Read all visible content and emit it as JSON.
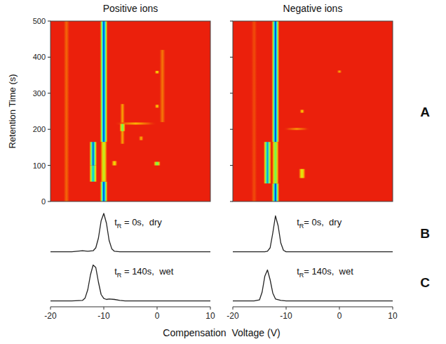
{
  "chart_data": [
    {
      "type": "heatmap",
      "title": "Positive ions",
      "ylabel": "Retention Time (s)",
      "panel": "A",
      "xlim": [
        -20,
        10
      ],
      "ylim": [
        0,
        500
      ],
      "yticks": [
        0,
        100,
        200,
        300,
        400,
        500
      ],
      "tick_labels": "y",
      "color_range": [
        0,
        1
      ],
      "cells": [
        {
          "cv": -17,
          "width": 1.2,
          "t": [
            0,
            500
          ],
          "intensity": 0.1
        },
        {
          "cv": -6.5,
          "width": 1,
          "t": [
            160,
            270
          ],
          "intensity": 0.18
        },
        {
          "cv": 1,
          "width": 1.2,
          "t": [
            220,
            420
          ],
          "intensity": 0.12
        },
        {
          "cv": -4,
          "width": 8,
          "t": [
            213,
            219
          ],
          "intensity": 0.2
        },
        {
          "cv": -10,
          "width": 1.6,
          "t": [
            0,
            55
          ],
          "intensity": 1
        },
        {
          "cv": -10,
          "width": 1.6,
          "t": [
            165,
            500
          ],
          "intensity": 1
        },
        {
          "cv": -10,
          "width": 1.4,
          "t": [
            55,
            165
          ],
          "intensity": 0.4
        },
        {
          "cv": -12,
          "width": 1.6,
          "t": [
            55,
            100
          ],
          "intensity": 0.8
        },
        {
          "cv": -12,
          "width": 1.6,
          "t": [
            100,
            165
          ],
          "intensity": 0.95
        },
        {
          "cv": -8,
          "width": 1.2,
          "t": [
            100,
            112
          ],
          "intensity": 0.3
        },
        {
          "cv": -6.5,
          "width": 1.2,
          "t": [
            195,
            215
          ],
          "intensity": 0.55
        },
        {
          "cv": 0,
          "width": 1.4,
          "t": [
            100,
            110
          ],
          "intensity": 0.55
        },
        {
          "cv": 0,
          "width": 1,
          "t": [
            355,
            362
          ],
          "intensity": 0.3
        },
        {
          "cv": 0,
          "width": 1,
          "t": [
            260,
            268
          ],
          "intensity": 0.25
        },
        {
          "cv": -3,
          "width": 1,
          "t": [
            170,
            180
          ],
          "intensity": 0.2
        }
      ]
    },
    {
      "type": "heatmap",
      "title": "Negative ions",
      "xlim": [
        -20,
        10
      ],
      "ylim": [
        0,
        500
      ],
      "yticks": [
        0,
        100,
        200,
        300,
        400,
        500
      ],
      "tick_labels": false,
      "color_range": [
        0,
        1
      ],
      "cells": [
        {
          "cv": -16,
          "width": 1.2,
          "t": [
            0,
            500
          ],
          "intensity": 0.06
        },
        {
          "cv": -8,
          "width": 5,
          "t": [
            198,
            204
          ],
          "intensity": 0.15
        },
        {
          "cv": -12,
          "width": 1.6,
          "t": [
            0,
            50
          ],
          "intensity": 1
        },
        {
          "cv": -12,
          "width": 1.6,
          "t": [
            165,
            500
          ],
          "intensity": 1
        },
        {
          "cv": -12,
          "width": 1.4,
          "t": [
            50,
            165
          ],
          "intensity": 0.55
        },
        {
          "cv": -13.5,
          "width": 1.6,
          "t": [
            50,
            165
          ],
          "intensity": 0.85
        },
        {
          "cv": -7,
          "width": 1.4,
          "t": [
            65,
            90
          ],
          "intensity": 0.35
        },
        {
          "cv": -7,
          "width": 1,
          "t": [
            246,
            254
          ],
          "intensity": 0.25
        },
        {
          "cv": 0,
          "width": 1,
          "t": [
            357,
            363
          ],
          "intensity": 0.2
        }
      ]
    },
    {
      "type": "line",
      "panel": "B",
      "xlim": [
        -20,
        10
      ],
      "ylim": [
        0,
        1
      ],
      "tick_labels": false,
      "annotation": {
        "parts": [
          "t",
          "R",
          " = 0s,  dry"
        ]
      },
      "x": [
        -20,
        -18,
        -16,
        -15,
        -14,
        -13,
        -12,
        -11.5,
        -11,
        -10.5,
        -10,
        -9.5,
        -9,
        -8.5,
        -8,
        -7,
        -6,
        -4,
        -2,
        0,
        2,
        4,
        6,
        8,
        10
      ],
      "series": [
        {
          "color": "#222222",
          "values": [
            0.12,
            0.12,
            0.12,
            0.13,
            0.14,
            0.13,
            0.14,
            0.2,
            0.4,
            0.75,
            0.9,
            0.7,
            0.35,
            0.18,
            0.13,
            0.12,
            0.12,
            0.12,
            0.12,
            0.12,
            0.12,
            0.12,
            0.12,
            0.12,
            0.12
          ]
        }
      ]
    },
    {
      "type": "line",
      "xlim": [
        -20,
        10
      ],
      "ylim": [
        0,
        1
      ],
      "tick_labels": false,
      "annotation": {
        "parts": [
          "t",
          "R",
          "= 0s,  dry"
        ]
      },
      "x": [
        -20,
        -18,
        -16,
        -14,
        -13.5,
        -13,
        -12.5,
        -12,
        -11.5,
        -11,
        -10.5,
        -10,
        -9,
        -8,
        -6,
        -4,
        -2,
        0,
        2,
        4,
        6,
        8,
        10
      ],
      "series": [
        {
          "color": "#222222",
          "values": [
            0.12,
            0.12,
            0.12,
            0.12,
            0.13,
            0.2,
            0.5,
            0.85,
            0.65,
            0.3,
            0.15,
            0.12,
            0.12,
            0.12,
            0.12,
            0.12,
            0.12,
            0.12,
            0.12,
            0.12,
            0.12,
            0.12,
            0.12
          ]
        }
      ]
    },
    {
      "type": "line",
      "panel": "C",
      "xlabel": "Compensation  Voltage (V)",
      "xlim": [
        -20,
        10
      ],
      "ylim": [
        0,
        1
      ],
      "xticks": [
        -20,
        -10,
        0,
        10
      ],
      "tick_labels": "x",
      "annotation": {
        "parts": [
          "t",
          "R",
          " = 140s,  wet"
        ]
      },
      "x": [
        -20,
        -18,
        -16,
        -14,
        -13.5,
        -13,
        -12.5,
        -12,
        -11.5,
        -11,
        -10.5,
        -10,
        -9.5,
        -9,
        -8,
        -7,
        -6,
        -4,
        -2,
        0,
        2,
        4,
        6,
        8,
        10
      ],
      "series": [
        {
          "color": "#222222",
          "values": [
            0.12,
            0.12,
            0.12,
            0.13,
            0.18,
            0.35,
            0.65,
            0.85,
            0.8,
            0.5,
            0.25,
            0.17,
            0.15,
            0.16,
            0.15,
            0.13,
            0.12,
            0.12,
            0.12,
            0.12,
            0.12,
            0.12,
            0.12,
            0.12,
            0.12
          ]
        }
      ]
    },
    {
      "type": "line",
      "xlim": [
        -20,
        10
      ],
      "ylim": [
        0,
        1
      ],
      "xticks": [
        -20,
        -10,
        0,
        10
      ],
      "tick_labels": "x",
      "annotation": {
        "parts": [
          "t",
          "R",
          "= 140s,  wet"
        ]
      },
      "x": [
        -20,
        -18,
        -16,
        -15,
        -14.5,
        -14,
        -13.5,
        -13,
        -12.5,
        -12,
        -11,
        -10,
        -8,
        -6,
        -4,
        -2,
        0,
        2,
        4,
        6,
        8,
        10
      ],
      "series": [
        {
          "color": "#222222",
          "values": [
            0.12,
            0.12,
            0.12,
            0.14,
            0.3,
            0.62,
            0.75,
            0.55,
            0.28,
            0.16,
            0.13,
            0.12,
            0.12,
            0.12,
            0.12,
            0.12,
            0.12,
            0.12,
            0.12,
            0.12,
            0.12,
            0.12
          ]
        }
      ]
    }
  ]
}
